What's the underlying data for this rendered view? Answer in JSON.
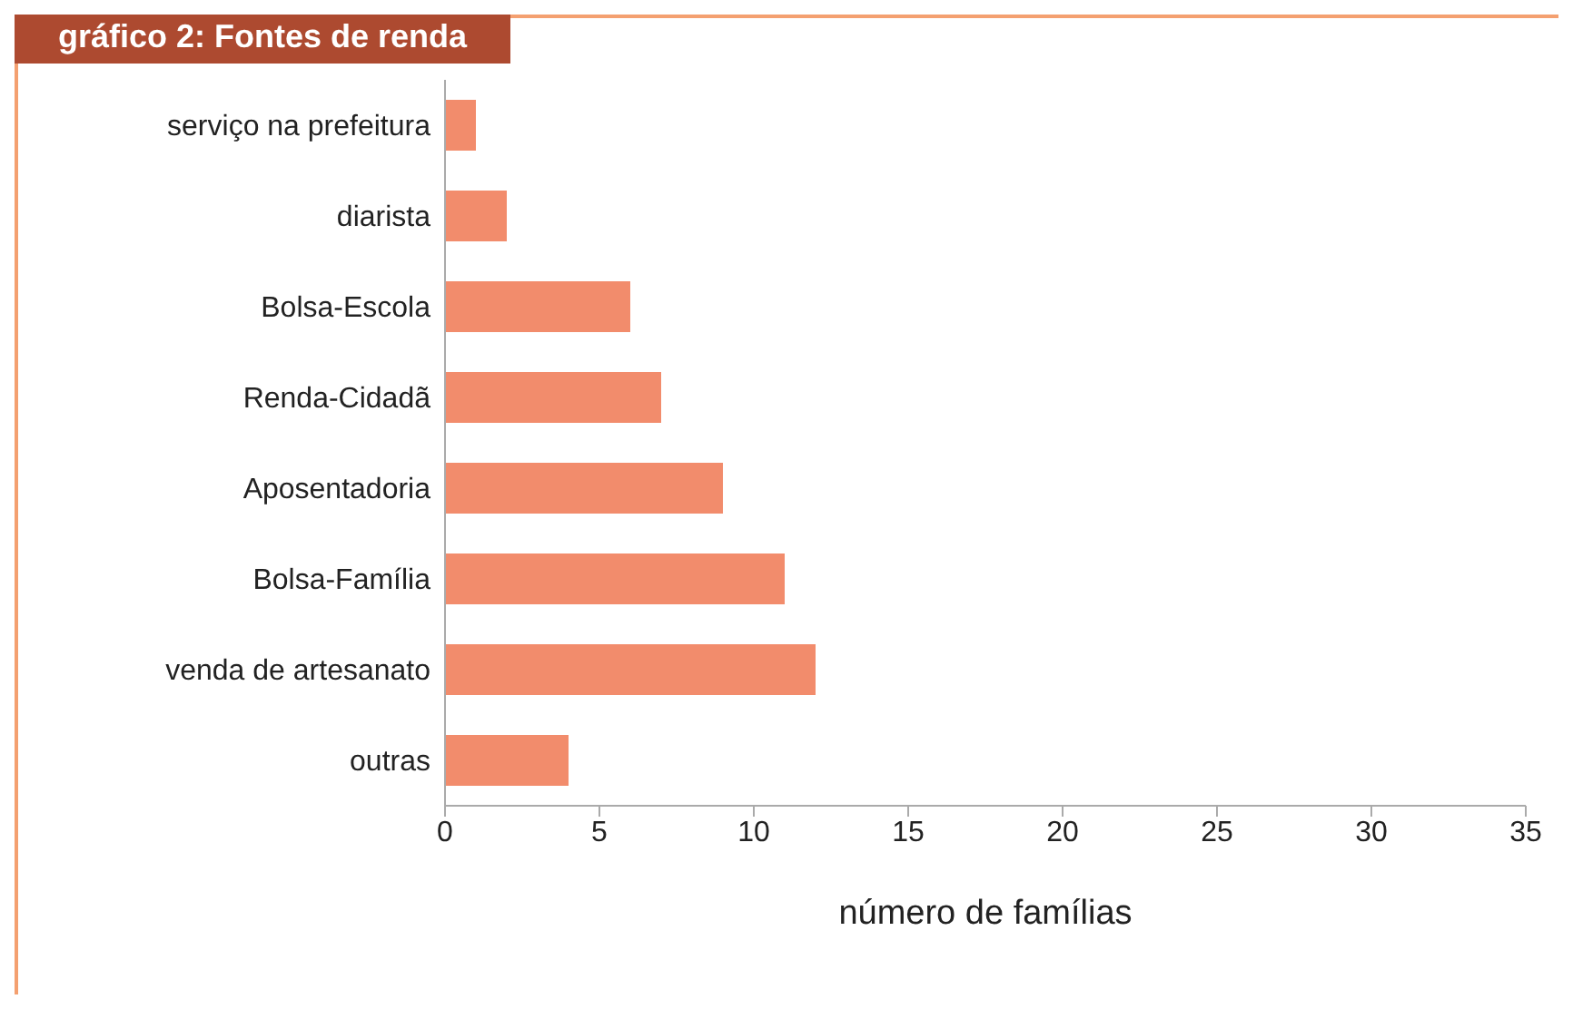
{
  "chart_data": {
    "type": "bar",
    "orientation": "horizontal",
    "title": "gráfico 2: Fontes de renda",
    "xlabel": "número de famílias",
    "categories": [
      "serviço na prefeitura",
      "diarista",
      "Bolsa-Escola",
      "Renda-Cidadã",
      "Aposentadoria",
      "Bolsa-Família",
      "venda de artesanato",
      "outras"
    ],
    "values": [
      1,
      2,
      6,
      7,
      9,
      11,
      12,
      4
    ],
    "color": "#f28c6c",
    "xlim": [
      0,
      35
    ],
    "xticks": [
      0,
      5,
      10,
      15,
      20,
      25,
      30,
      35
    ],
    "grid": false,
    "legend": false
  }
}
